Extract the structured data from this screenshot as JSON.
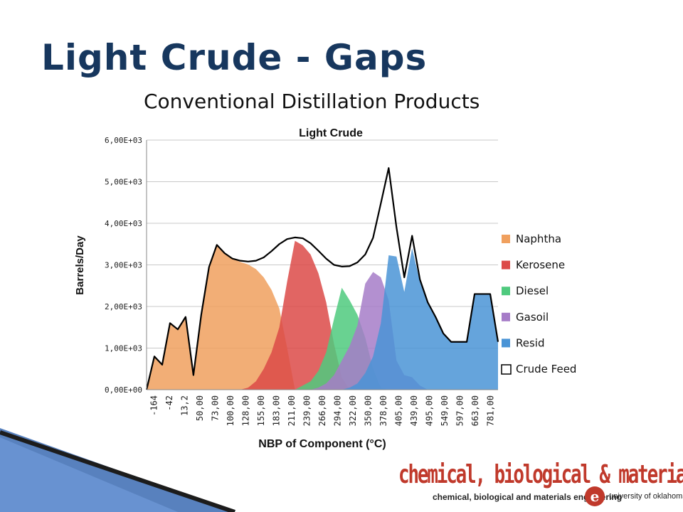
{
  "slide": {
    "title": "Light Crude - Gaps",
    "subtitle": "Conventional Distillation Products"
  },
  "logo": {
    "main": "chemical, biological & materials",
    "sub": "chemical, biological and materials engineering",
    "seal": "e",
    "university": "university of oklahoma"
  },
  "colors": {
    "title": "#17375e",
    "naphtha": "#f0a05e",
    "kerosene": "#dc4a48",
    "diesel": "#4fca7e",
    "gasoil": "#a67cc8",
    "resid": "#4a94d6",
    "crude_feed": "#000000",
    "deco_blue": "#3b6bb3"
  },
  "chart_data": {
    "type": "area",
    "title": "Light Crude",
    "xlabel": "NBP of Component (°C)",
    "ylabel": "Barrels/Day",
    "ylim": [
      0,
      6000
    ],
    "yticks": [
      0,
      1000,
      2000,
      3000,
      4000,
      5000,
      6000
    ],
    "ytick_labels": [
      "0,00E+00",
      "1,00E+03",
      "2,00E+03",
      "3,00E+03",
      "4,00E+03",
      "5,00E+03",
      "6,00E+03"
    ],
    "x_tick_labels": [
      "-164",
      "-42",
      "13,2",
      "50,00",
      "73,00",
      "100,00",
      "128,00",
      "155,00",
      "183,00",
      "211,00",
      "239,00",
      "266,00",
      "294,00",
      "322,00",
      "350,00",
      "378,00",
      "405,00",
      "439,00",
      "495,00",
      "549,00",
      "597,00",
      "663,00",
      "781,00"
    ],
    "legend_position": "right",
    "grid": true,
    "series": [
      {
        "name": "Naphtha",
        "kind": "area",
        "values": [
          0,
          800,
          600,
          1600,
          1450,
          1750,
          350,
          1800,
          2950,
          3480,
          3280,
          3150,
          3070,
          3010,
          2900,
          2700,
          2400,
          1950,
          1000,
          0,
          0,
          0,
          0,
          0,
          0,
          0,
          0,
          0,
          0,
          0,
          0,
          0,
          0,
          0,
          0,
          0,
          0,
          0,
          0,
          0,
          0,
          0,
          0,
          0,
          0,
          0
        ]
      },
      {
        "name": "Kerosene",
        "kind": "area",
        "values": [
          0,
          0,
          0,
          0,
          0,
          0,
          0,
          0,
          0,
          0,
          0,
          0,
          0,
          50,
          200,
          500,
          900,
          1500,
          2600,
          3580,
          3470,
          3250,
          2800,
          2100,
          1100,
          300,
          0,
          0,
          0,
          0,
          0,
          0,
          0,
          0,
          0,
          0,
          0,
          0,
          0,
          0,
          0,
          0,
          0,
          0,
          0,
          0
        ]
      },
      {
        "name": "Diesel",
        "kind": "area",
        "values": [
          0,
          0,
          0,
          0,
          0,
          0,
          0,
          0,
          0,
          0,
          0,
          0,
          0,
          0,
          0,
          0,
          0,
          0,
          0,
          0,
          100,
          200,
          450,
          900,
          1700,
          2450,
          2150,
          1800,
          1250,
          500,
          50,
          0,
          0,
          0,
          0,
          0,
          0,
          0,
          0,
          0,
          0,
          0,
          0,
          0,
          0,
          0
        ]
      },
      {
        "name": "Gasoil",
        "kind": "area",
        "values": [
          0,
          0,
          0,
          0,
          0,
          0,
          0,
          0,
          0,
          0,
          0,
          0,
          0,
          0,
          0,
          0,
          0,
          0,
          0,
          0,
          0,
          0,
          50,
          150,
          350,
          700,
          1050,
          1550,
          2550,
          2830,
          2700,
          2150,
          700,
          350,
          300,
          100,
          0,
          0,
          0,
          0,
          0,
          0,
          0,
          0,
          0,
          0
        ]
      },
      {
        "name": "Resid",
        "kind": "area",
        "values": [
          0,
          0,
          0,
          0,
          0,
          0,
          0,
          0,
          0,
          0,
          0,
          0,
          0,
          0,
          0,
          0,
          0,
          0,
          0,
          0,
          0,
          0,
          0,
          0,
          0,
          0,
          50,
          150,
          400,
          800,
          1600,
          3230,
          3200,
          2350,
          3400,
          2600,
          2100,
          1750,
          1350,
          1150,
          1150,
          1150,
          2300,
          2300,
          2300,
          1150
        ]
      },
      {
        "name": "Crude Feed",
        "kind": "line",
        "values": [
          0,
          800,
          600,
          1600,
          1450,
          1750,
          350,
          1800,
          2950,
          3480,
          3280,
          3150,
          3100,
          3080,
          3100,
          3180,
          3330,
          3500,
          3620,
          3660,
          3640,
          3520,
          3340,
          3150,
          3000,
          2960,
          2970,
          3060,
          3250,
          3650,
          4480,
          5330,
          3900,
          2700,
          3700,
          2650,
          2100,
          1750,
          1350,
          1150,
          1150,
          1150,
          2300,
          2300,
          2300,
          1150
        ]
      }
    ]
  }
}
